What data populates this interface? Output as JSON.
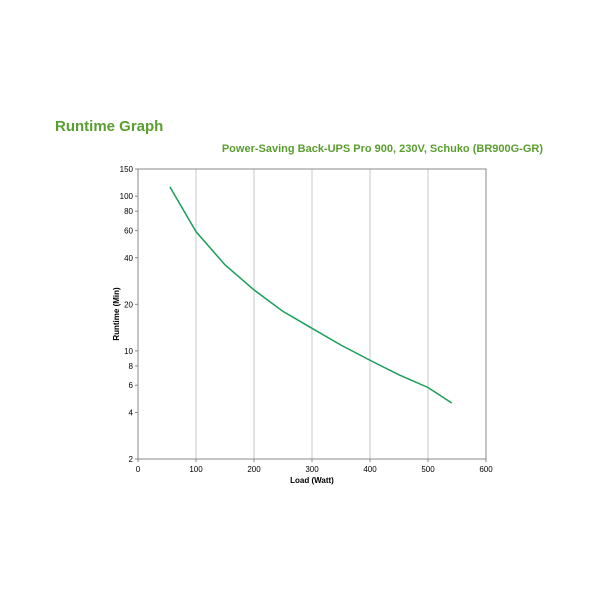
{
  "chart_data": {
    "type": "line",
    "title": "Runtime Graph",
    "subtitle": "Power-Saving Back-UPS Pro 900, 230V, Schuko (BR900G-GR)",
    "xlabel": "Load (Watt)",
    "ylabel": "Runtime (Min)",
    "x": [
      55,
      100,
      150,
      200,
      250,
      300,
      350,
      400,
      450,
      500,
      541
    ],
    "series": [
      {
        "name": "Runtime",
        "color": "#1a9e5a",
        "values": [
          115,
          59,
          36,
          24.8,
          18,
          14,
          10.9,
          8.7,
          7,
          5.8,
          4.6
        ]
      }
    ],
    "xlim": [
      0,
      600
    ],
    "xticks": [
      0,
      100,
      200,
      300,
      400,
      500,
      600
    ],
    "ylim": [
      2,
      150
    ],
    "yticks": [
      2,
      4,
      6,
      8,
      10,
      20,
      40,
      60,
      80,
      100,
      150
    ],
    "yscale": "log",
    "grid": "x",
    "title_color": "#5a9e2f"
  }
}
